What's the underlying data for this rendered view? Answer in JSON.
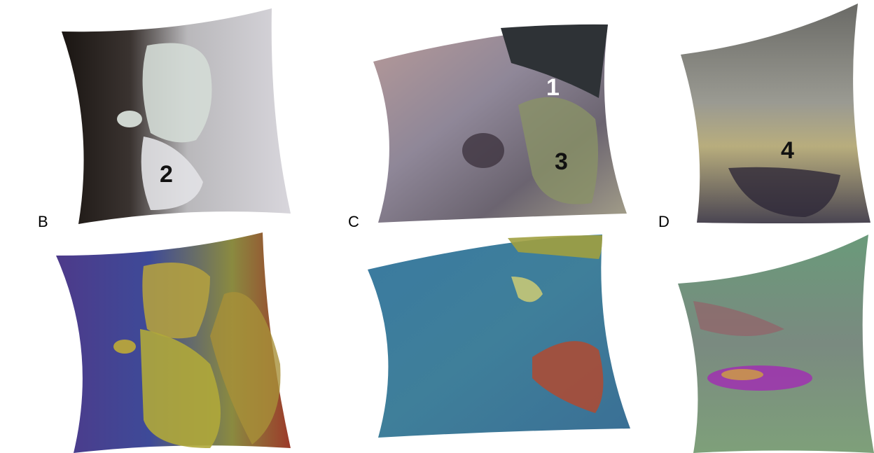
{
  "panels": [
    {
      "label": "B",
      "annotations": [
        "2"
      ]
    },
    {
      "label": "C",
      "annotations": [
        "1",
        "3"
      ]
    },
    {
      "label": "D",
      "annotations": [
        "4"
      ]
    }
  ]
}
